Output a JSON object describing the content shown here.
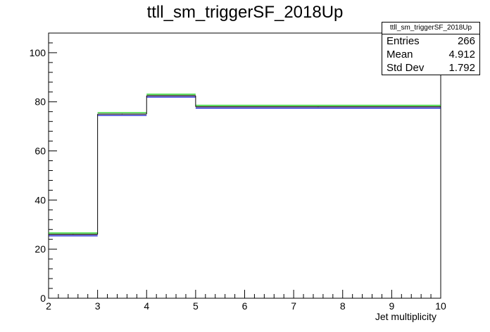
{
  "chart_data": {
    "type": "histogram",
    "title": "ttll_sm_triggerSF_2018Up",
    "xlabel": "Jet multiplicity",
    "ylabel": "",
    "xlim": [
      2,
      10
    ],
    "ylim": [
      0,
      108
    ],
    "x_ticks": [
      2,
      3,
      4,
      5,
      6,
      7,
      8,
      9,
      10
    ],
    "y_ticks": [
      0,
      20,
      40,
      60,
      80,
      100
    ],
    "bins": [
      {
        "x0": 2,
        "x1": 3,
        "value": 26.0
      },
      {
        "x0": 3,
        "x1": 4,
        "value": 75.0
      },
      {
        "x0": 4,
        "x1": 5,
        "value": 82.5
      },
      {
        "x0": 5,
        "x1": 10,
        "value": 78.0
      }
    ],
    "band_colors": {
      "lower": "#0000cc",
      "center": "#000000",
      "upper": "#00cc00"
    },
    "grid": false
  },
  "stats": {
    "name": "ttll_sm_triggerSF_2018Up",
    "rows": [
      {
        "label": "Entries",
        "value": "266"
      },
      {
        "label": "Mean",
        "value": "4.912"
      },
      {
        "label": "Std Dev",
        "value": "1.792"
      }
    ]
  }
}
